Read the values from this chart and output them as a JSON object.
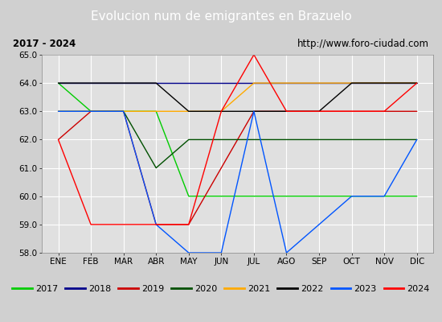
{
  "title": "Evolucion num de emigrantes en Brazuelo",
  "subtitle_left": "2017 - 2024",
  "subtitle_right": "http://www.foro-ciudad.com",
  "ylim": [
    58.0,
    65.0
  ],
  "yticks": [
    58.0,
    59.0,
    60.0,
    61.0,
    62.0,
    63.0,
    64.0,
    65.0
  ],
  "months": [
    "ENE",
    "FEB",
    "MAR",
    "ABR",
    "MAY",
    "JUN",
    "JUL",
    "AGO",
    "SEP",
    "OCT",
    "NOV",
    "DIC"
  ],
  "series": [
    {
      "label": "2017",
      "color": "#00cc00",
      "data": [
        64,
        63,
        63,
        63,
        60,
        60,
        60,
        60,
        60,
        60,
        60,
        60
      ]
    },
    {
      "label": "2018",
      "color": "#00008b",
      "data": [
        64,
        64,
        64,
        64,
        64,
        64,
        64,
        64,
        64,
        64,
        64,
        64
      ]
    },
    {
      "label": "2019",
      "color": "#cc0000",
      "data": [
        62,
        63,
        63,
        59,
        59,
        61,
        63,
        63,
        63,
        63,
        63,
        63
      ]
    },
    {
      "label": "2020",
      "color": "#005000",
      "data": [
        63,
        63,
        63,
        61,
        62,
        62,
        62,
        62,
        62,
        62,
        62,
        62
      ]
    },
    {
      "label": "2021",
      "color": "#ffaa00",
      "data": [
        63,
        63,
        63,
        63,
        63,
        63,
        64,
        64,
        64,
        64,
        64,
        64
      ]
    },
    {
      "label": "2022",
      "color": "#000000",
      "data": [
        64,
        64,
        64,
        64,
        63,
        63,
        63,
        63,
        63,
        64,
        64,
        64
      ]
    },
    {
      "label": "2023",
      "color": "#0055ff",
      "data": [
        63,
        63,
        63,
        59,
        58,
        58,
        63,
        58,
        59,
        60,
        60,
        62
      ]
    },
    {
      "label": "2024",
      "color": "#ff0000",
      "data": [
        62,
        59,
        59,
        59,
        59,
        63,
        65,
        63,
        63,
        63,
        63,
        64
      ]
    }
  ],
  "title_bg_color": "#4466bb",
  "title_fg_color": "#ffffff",
  "plot_bg_color": "#e0e0e0",
  "grid_color": "#ffffff",
  "box_color": "#ffffff",
  "fig_bg_color": "#d0d0d0"
}
